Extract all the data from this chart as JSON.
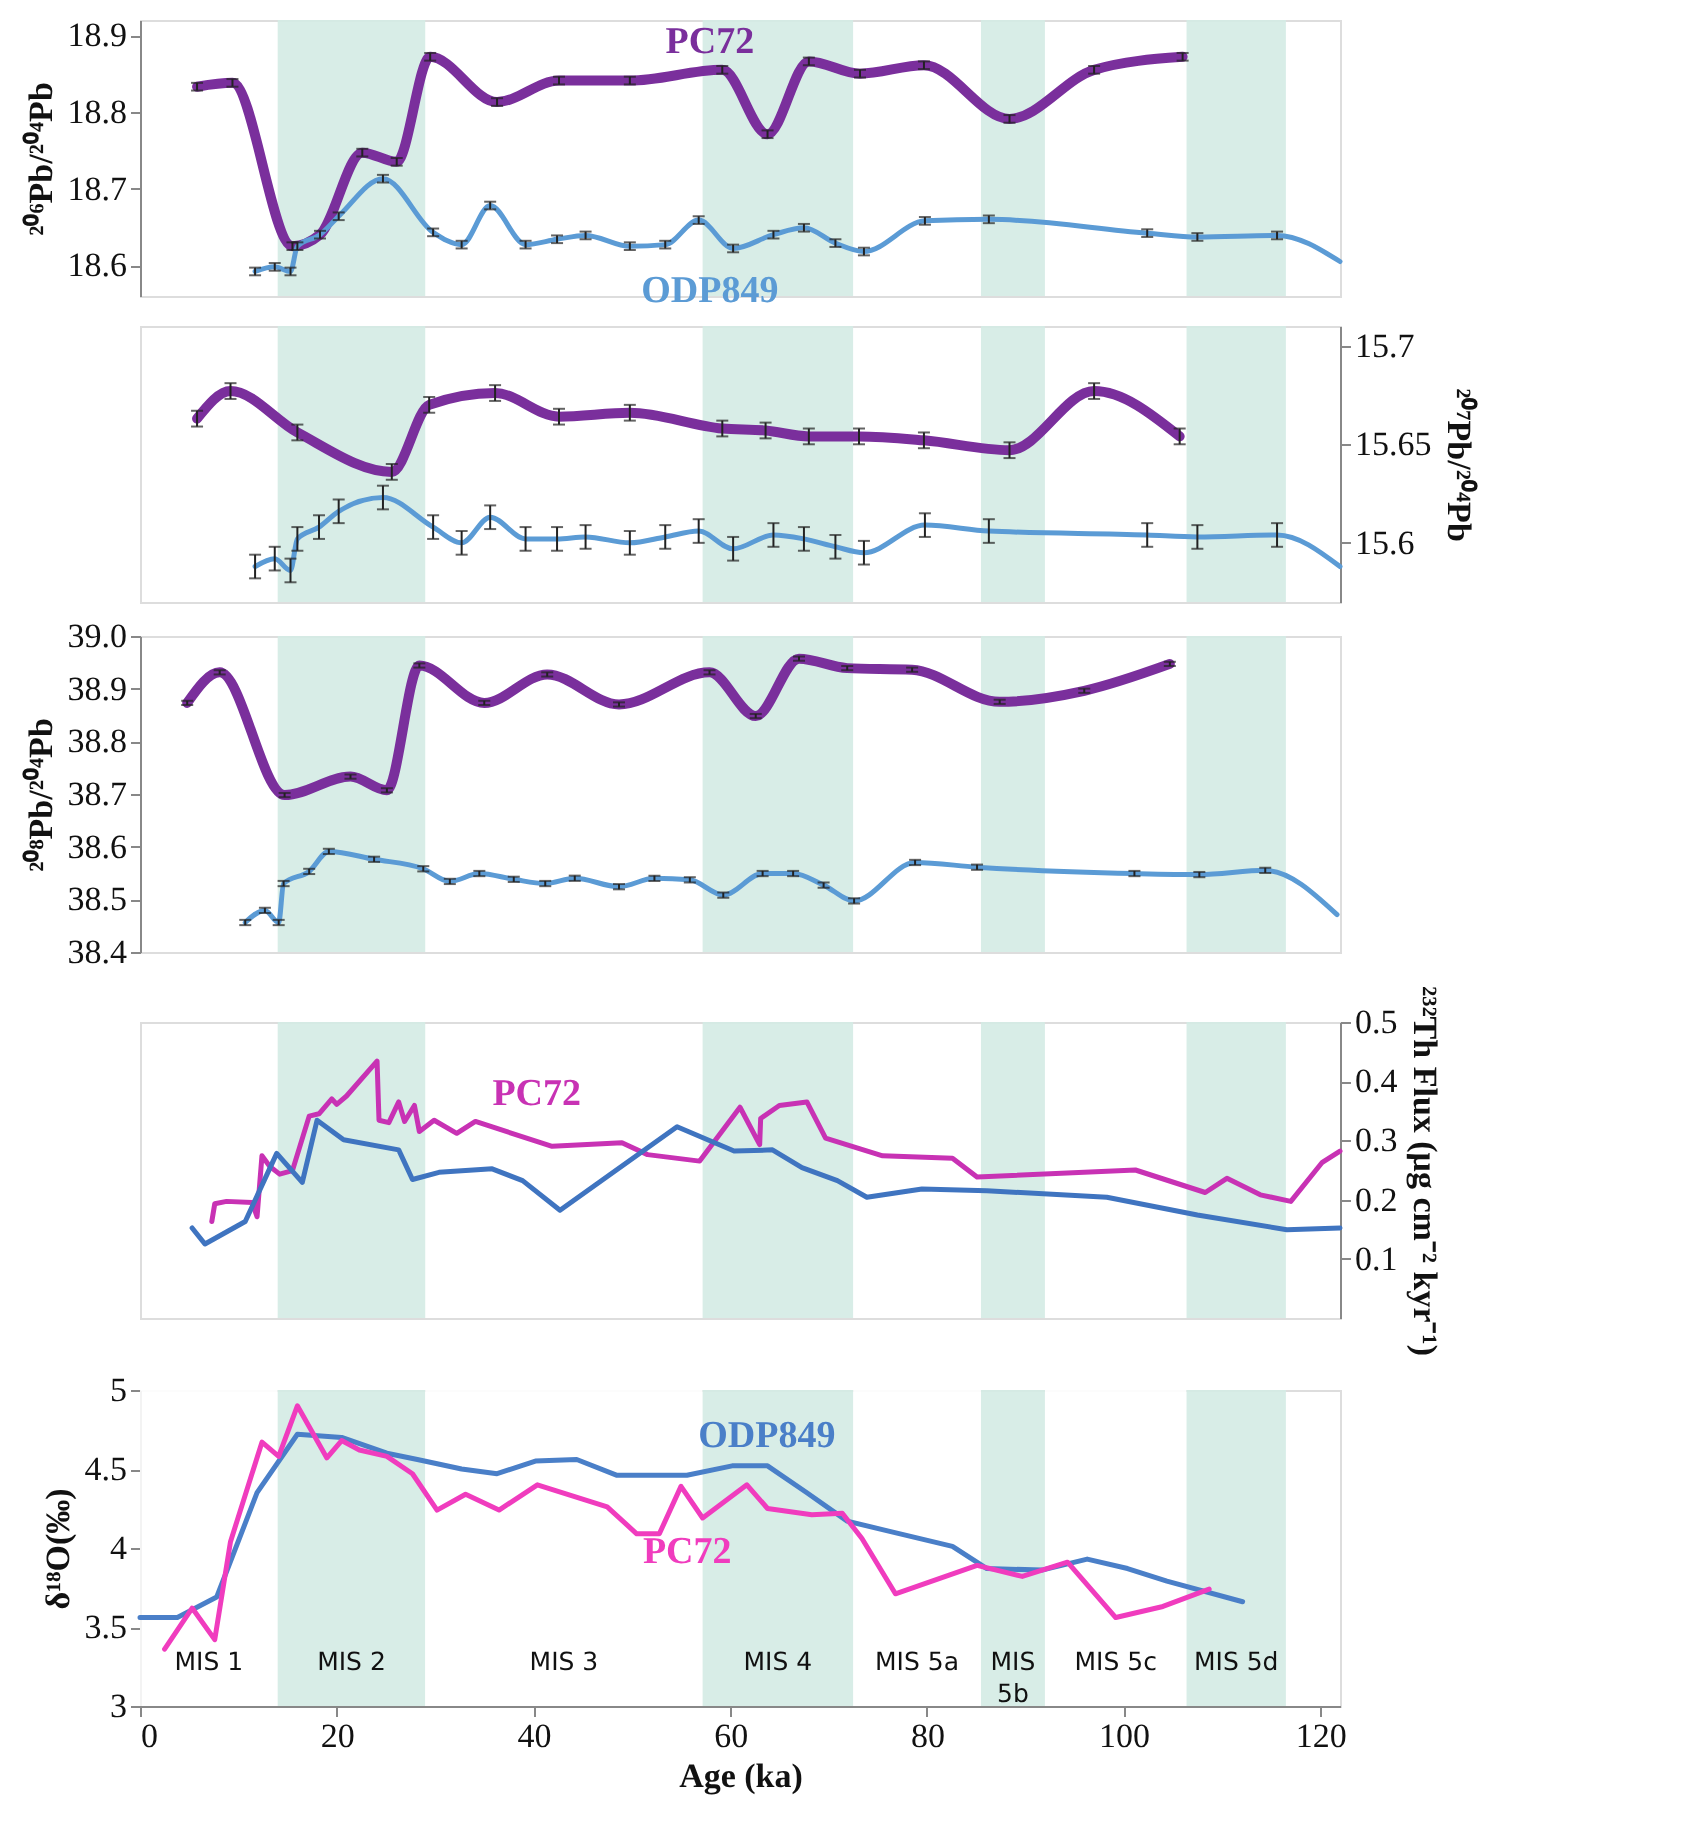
{
  "chart_data": [
    {
      "type": "line",
      "ylabel": "²⁰⁶Pb/²⁰⁴Pb",
      "xlim": [
        0,
        122
      ],
      "ylim": [
        18.56,
        18.92
      ],
      "yticks": [
        18.6,
        18.7,
        18.8,
        18.9
      ],
      "tick_labels": "y",
      "marker": "none",
      "bands": [
        {
          "axis": "x",
          "from": 14,
          "to": 29,
          "color": "#d4ebe4"
        },
        {
          "axis": "x",
          "from": 57.2,
          "to": 72.5,
          "color": "#d4ebe4"
        },
        {
          "axis": "x",
          "from": 85.5,
          "to": 92,
          "color": "#d4ebe4"
        },
        {
          "axis": "x",
          "from": 106.4,
          "to": 116.5,
          "color": "#d4ebe4"
        }
      ],
      "series": [
        {
          "name": "PC72",
          "color": "#7a2f9c",
          "x": [
            5.8,
            9.4,
            15.5,
            18.3,
            22.6,
            26.1,
            29.5,
            36.3,
            42.6,
            49.8,
            59.2,
            63.8,
            68.0,
            73.2,
            79.7,
            88.4,
            97.0,
            106.0
          ],
          "values": [
            18.833,
            18.838,
            18.625,
            18.64,
            18.747,
            18.735,
            18.872,
            18.813,
            18.841,
            18.841,
            18.855,
            18.771,
            18.866,
            18.85,
            18.861,
            18.791,
            18.855,
            18.872
          ],
          "errors": [
            0.005,
            0.005,
            0.005,
            null,
            0.005,
            0.005,
            0.005,
            0.005,
            0.005,
            0.005,
            0.005,
            0.005,
            0.005,
            0.005,
            0.005,
            0.005,
            0.005,
            0.005
          ]
        },
        {
          "name": "ODP849",
          "color": "#5b9bd5",
          "x": [
            11.7,
            13.7,
            15.3,
            16.0,
            18.3,
            20.2,
            24.7,
            29.8,
            32.7,
            35.6,
            39.2,
            42.4,
            45.3,
            49.8,
            53.4,
            56.8,
            60.3,
            64.4,
            67.5,
            70.7,
            73.6,
            79.8,
            86.3,
            102.4,
            107.5,
            115.6,
            122
          ],
          "values": [
            18.592,
            18.598,
            18.592,
            18.625,
            18.64,
            18.664,
            18.713,
            18.643,
            18.627,
            18.678,
            18.627,
            18.634,
            18.639,
            18.625,
            18.627,
            18.659,
            18.622,
            18.64,
            18.649,
            18.629,
            18.618,
            18.658,
            18.66,
            18.642,
            18.637,
            18.639,
            18.605
          ],
          "errors": [
            0.005,
            0.005,
            0.005,
            0.005,
            0.005,
            0.005,
            0.005,
            0.005,
            0.005,
            0.005,
            0.005,
            0.005,
            0.005,
            0.005,
            0.005,
            0.005,
            0.005,
            0.005,
            0.005,
            0.005,
            0.005,
            0.005,
            0.005,
            0.005,
            0.005,
            0.005,
            null
          ]
        }
      ]
    },
    {
      "type": "line",
      "y2label": "²⁰⁷Pb/²⁰⁴Pb",
      "xlim": [
        0,
        122
      ],
      "y2lim": [
        15.57,
        15.71
      ],
      "y2ticks": [
        {
          "value": 15.6,
          "label": "15.6"
        },
        15.65,
        {
          "value": 15.7,
          "label": "15.7"
        }
      ],
      "tick_labels": "y",
      "marker": "none",
      "bands": [
        {
          "axis": "x",
          "from": 14,
          "to": 29,
          "color": "#d4ebe4"
        },
        {
          "axis": "x",
          "from": 57.2,
          "to": 72.5,
          "color": "#d4ebe4"
        },
        {
          "axis": "x",
          "from": 85.5,
          "to": 92,
          "color": "#d4ebe4"
        },
        {
          "axis": "x",
          "from": 106.4,
          "to": 116.5,
          "color": "#d4ebe4"
        }
      ],
      "series": [
        {
          "axis": "y2",
          "color": "#7a2f9c",
          "x": [
            5.8,
            9.2,
            16.0,
            25.6,
            29.4,
            36.1,
            42.6,
            49.8,
            59.2,
            63.6,
            68.0,
            73.1,
            79.7,
            88.4,
            97.0,
            105.7
          ],
          "values": [
            15.663,
            15.677,
            15.656,
            15.636,
            15.67,
            15.676,
            15.664,
            15.666,
            15.658,
            15.657,
            15.654,
            15.654,
            15.652,
            15.647,
            15.677,
            15.654
          ],
          "errors": [
            0.004,
            0.004,
            0.004,
            0.004,
            0.004,
            0.004,
            0.004,
            0.004,
            0.004,
            0.004,
            0.004,
            0.004,
            0.004,
            0.004,
            0.004,
            0.004
          ]
        },
        {
          "axis": "y2",
          "color": "#5b9bd5",
          "x": [
            11.7,
            13.7,
            15.3,
            16.0,
            18.2,
            20.2,
            24.7,
            29.8,
            32.7,
            35.6,
            39.2,
            42.4,
            45.3,
            49.8,
            53.4,
            56.8,
            60.3,
            64.4,
            67.5,
            70.7,
            73.6,
            79.8,
            86.3,
            102.4,
            107.5,
            115.6,
            122
          ],
          "values": [
            15.588,
            15.592,
            15.586,
            15.602,
            15.608,
            15.616,
            15.623,
            15.608,
            15.6,
            15.613,
            15.602,
            15.602,
            15.603,
            15.6,
            15.603,
            15.606,
            15.597,
            15.604,
            15.602,
            15.598,
            15.595,
            15.609,
            15.606,
            15.604,
            15.603,
            15.604,
            15.588
          ],
          "errors": [
            0.006,
            0.006,
            0.006,
            0.006,
            0.006,
            0.006,
            0.006,
            0.006,
            0.006,
            0.006,
            0.006,
            0.006,
            0.006,
            0.006,
            0.006,
            0.006,
            0.006,
            0.006,
            0.006,
            0.006,
            0.006,
            0.006,
            0.006,
            0.006,
            0.006,
            0.006,
            null
          ]
        }
      ]
    },
    {
      "type": "line",
      "ylabel": "²⁰⁸Pb/²⁰⁴Pb",
      "xlim": [
        0,
        122
      ],
      "ylim": [
        38.4,
        39.0
      ],
      "yticks": [
        {
          "value": 38.4,
          "label": "38.4"
        },
        {
          "value": 38.5,
          "label": "38.5"
        },
        {
          "value": 38.6,
          "label": "38.6"
        },
        {
          "value": 38.7,
          "label": "38.7"
        },
        {
          "value": 38.8,
          "label": "38.8"
        },
        {
          "value": 38.9,
          "label": "38.9"
        },
        {
          "value": 39,
          "label": "39.0"
        }
      ],
      "tick_labels": "y",
      "marker": "none",
      "bands": [
        {
          "axis": "x",
          "from": 14,
          "to": 29,
          "color": "#d4ebe4"
        },
        {
          "axis": "x",
          "from": 57.2,
          "to": 72.5,
          "color": "#d4ebe4"
        },
        {
          "axis": "x",
          "from": 85.5,
          "to": 92,
          "color": "#d4ebe4"
        },
        {
          "axis": "x",
          "from": 106.4,
          "to": 116.5,
          "color": "#d4ebe4"
        }
      ],
      "series": [
        {
          "color": "#7a2f9c",
          "x": [
            4.8,
            8.1,
            14.7,
            21.4,
            25.1,
            28.4,
            35.0,
            41.4,
            48.7,
            57.9,
            62.6,
            67.0,
            71.9,
            78.5,
            87.4,
            96.0,
            104.7
          ],
          "values": [
            38.873,
            38.931,
            38.698,
            38.733,
            38.707,
            38.944,
            38.873,
            38.927,
            38.87,
            38.931,
            38.848,
            38.957,
            38.939,
            38.936,
            38.875,
            38.896,
            38.947
          ],
          "errors": [
            0.004,
            0.004,
            0.004,
            0.004,
            0.004,
            0.004,
            0.004,
            0.004,
            0.004,
            0.004,
            0.004,
            0.004,
            0.004,
            0.004,
            0.004,
            0.004,
            0.004
          ]
        },
        {
          "color": "#5b9bd5",
          "x": [
            10.7,
            12.7,
            14.1,
            14.6,
            17.2,
            19.2,
            23.8,
            28.8,
            31.5,
            34.5,
            38.0,
            41.2,
            44.2,
            48.7,
            52.3,
            55.9,
            59.3,
            63.3,
            66.4,
            69.5,
            72.6,
            78.8,
            85.1,
            101.1,
            107.7,
            114.4,
            121.7
          ],
          "values": [
            38.456,
            38.479,
            38.456,
            38.53,
            38.553,
            38.591,
            38.576,
            38.558,
            38.534,
            38.549,
            38.538,
            38.53,
            38.54,
            38.524,
            38.54,
            38.537,
            38.508,
            38.549,
            38.549,
            38.527,
            38.497,
            38.57,
            38.561,
            38.549,
            38.547,
            38.555,
            38.471
          ],
          "errors": [
            0.005,
            0.005,
            0.005,
            0.005,
            0.005,
            0.005,
            0.005,
            0.005,
            0.005,
            0.005,
            0.005,
            0.005,
            0.005,
            0.005,
            0.005,
            0.005,
            0.005,
            0.005,
            0.005,
            0.005,
            0.005,
            0.005,
            0.005,
            0.005,
            0.005,
            0.005,
            null
          ]
        }
      ]
    },
    {
      "type": "line",
      "y2label": "²³²Th Flux (μg cm⁻² kyr⁻¹)",
      "xlim": [
        0,
        122
      ],
      "y2lim": [
        0,
        0.5
      ],
      "y2ticks": [
        0.1,
        0.2,
        0.3,
        0.4,
        0.5
      ],
      "tick_labels": "y",
      "marker": "none",
      "bands": [
        {
          "axis": "x",
          "from": 14,
          "to": 29,
          "color": "#d4ebe4"
        },
        {
          "axis": "x",
          "from": 57.2,
          "to": 72.5,
          "color": "#d4ebe4"
        },
        {
          "axis": "x",
          "from": 85.5,
          "to": 92,
          "color": "#d4ebe4"
        },
        {
          "axis": "x",
          "from": 106.4,
          "to": 116.5,
          "color": "#d4ebe4"
        }
      ],
      "series": [
        {
          "name": "PC72",
          "axis": "y2",
          "color": "#c832b4",
          "x": [
            7.3,
            7.6,
            8.8,
            11.4,
            11.9,
            12.4,
            13.2,
            14.2,
            15.5,
            17.2,
            18.2,
            19.5,
            20.0,
            21.0,
            24.1,
            24.3,
            25.3,
            26.3,
            26.9,
            27.9,
            28.4,
            29.9,
            32.2,
            34.1,
            41.9,
            49.0,
            51.6,
            56.9,
            61.0,
            63.0,
            63.1,
            65.0,
            67.8,
            69.7,
            75.5,
            82.6,
            85.1,
            101.2,
            108.3,
            110.5,
            113.9,
            117.0,
            120.2,
            122
          ],
          "values": [
            0.163,
            0.193,
            0.197,
            0.195,
            0.171,
            0.274,
            0.256,
            0.243,
            0.249,
            0.341,
            0.345,
            0.37,
            0.361,
            0.375,
            0.434,
            0.334,
            0.33,
            0.365,
            0.332,
            0.359,
            0.315,
            0.334,
            0.312,
            0.332,
            0.29,
            0.296,
            0.276,
            0.265,
            0.356,
            0.293,
            0.337,
            0.359,
            0.365,
            0.304,
            0.274,
            0.27,
            0.238,
            0.25,
            0.212,
            0.236,
            0.208,
            0.197,
            0.263,
            0.282
          ]
        },
        {
          "axis": "y2",
          "color": "#3f74c0",
          "x": [
            5.3,
            6.6,
            10.7,
            13.9,
            16.5,
            18.0,
            20.7,
            26.3,
            27.7,
            30.4,
            35.8,
            38.9,
            42.7,
            54.6,
            60.4,
            64.3,
            67.3,
            70.9,
            73.9,
            79.5,
            86.1,
            98.3,
            107.5,
            116.6,
            122
          ],
          "values": [
            0.152,
            0.125,
            0.163,
            0.278,
            0.229,
            0.334,
            0.301,
            0.284,
            0.234,
            0.246,
            0.252,
            0.232,
            0.182,
            0.323,
            0.282,
            0.284,
            0.254,
            0.232,
            0.204,
            0.218,
            0.215,
            0.204,
            0.174,
            0.149,
            0.152
          ]
        }
      ]
    },
    {
      "type": "line",
      "ylabel": "δ¹⁸O(‰)",
      "xlabel": "Age (ka)",
      "xlim": [
        0,
        122
      ],
      "xticks": [
        0,
        20,
        40,
        60,
        80,
        100,
        120
      ],
      "ylim": [
        3,
        5
      ],
      "yticks": [
        {
          "value": 3,
          "label": "3"
        },
        3.5,
        {
          "value": 4,
          "label": "4"
        },
        4.5,
        {
          "value": 5,
          "label": "5"
        }
      ],
      "marker": "none",
      "bands": [
        {
          "axis": "x",
          "from": 0,
          "to": 14,
          "color": "#ffffff",
          "label": "MIS 1"
        },
        {
          "axis": "x",
          "from": 14,
          "to": 29,
          "color": "#d4ebe4",
          "label": "MIS 2"
        },
        {
          "axis": "x",
          "from": 29,
          "to": 57.2,
          "color": "#ffffff",
          "label": "MIS 3"
        },
        {
          "axis": "x",
          "from": 72.5,
          "to": 85.5,
          "color": "#ffffff",
          "label": "MIS 5a"
        },
        {
          "axis": "x",
          "from": 92,
          "to": 106.4,
          "color": "#ffffff",
          "label": "MIS 5c"
        },
        {
          "axis": "x",
          "from": 57.2,
          "to": 72.5,
          "color": "#d4ebe4",
          "label": "MIS 4"
        },
        {
          "axis": "x",
          "from": 85.5,
          "to": 92,
          "color": "#d4ebe4",
          "label": "MIS 5b"
        },
        {
          "axis": "x",
          "from": 106.4,
          "to": 116.5,
          "color": "#d4ebe4",
          "label": "MIS 5d"
        }
      ],
      "series": [
        {
          "name": "ODP849",
          "color": "#4a7fc8",
          "x": [
            0,
            3.8,
            7.8,
            11.9,
            16.0,
            20.5,
            25.1,
            28.2,
            32.7,
            36.3,
            40.2,
            44.4,
            48.5,
            55.6,
            60.2,
            63.8,
            67.8,
            71.9,
            75.9,
            82.6,
            86.1,
            91.7,
            96.3,
            100.4,
            104.4,
            112.1
          ],
          "values": [
            3.56,
            3.56,
            3.69,
            4.35,
            4.72,
            4.7,
            4.6,
            4.56,
            4.5,
            4.47,
            4.55,
            4.56,
            4.46,
            4.46,
            4.52,
            4.52,
            4.35,
            4.17,
            4.11,
            4.01,
            3.87,
            3.86,
            3.93,
            3.87,
            3.79,
            3.66
          ]
        },
        {
          "name": "PC72",
          "color": "#f03cbe",
          "x": [
            2.5,
            5.3,
            7.6,
            9.2,
            12.4,
            14.1,
            16.0,
            19.0,
            20.5,
            22.3,
            25.1,
            27.7,
            30.2,
            33.1,
            36.5,
            40.4,
            47.5,
            50.5,
            52.8,
            55.0,
            57.2,
            61.7,
            63.8,
            68.3,
            71.4,
            73.4,
            76.8,
            85.1,
            89.7,
            94.3,
            99.2,
            104.0,
            108.7
          ],
          "values": [
            3.36,
            3.62,
            3.42,
            4.04,
            4.67,
            4.58,
            4.9,
            4.57,
            4.68,
            4.62,
            4.58,
            4.47,
            4.24,
            4.34,
            4.24,
            4.4,
            4.26,
            4.09,
            4.09,
            4.39,
            4.19,
            4.4,
            4.25,
            4.21,
            4.22,
            4.06,
            3.71,
            3.89,
            3.82,
            3.91,
            3.56,
            3.63,
            3.74
          ]
        }
      ]
    }
  ]
}
